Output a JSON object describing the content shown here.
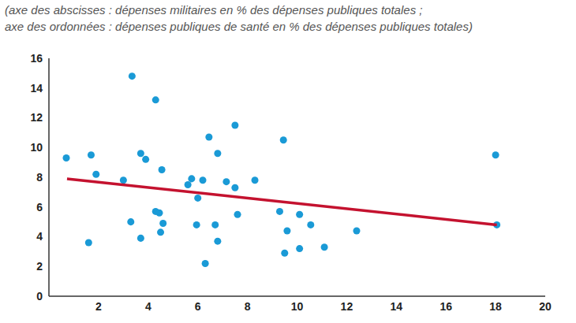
{
  "chart_data": {
    "type": "scatter",
    "subtitle": [
      "(axe des abscisses : dépenses militaires en % des dépenses publiques totales ;",
      "axe des ordonnées : dépenses publiques de santé en % des dépenses publiques totales)"
    ],
    "xlim": [
      0,
      20
    ],
    "xticks": [
      2,
      4,
      6,
      8,
      10,
      12,
      14,
      16,
      18,
      20
    ],
    "ylim": [
      0,
      16
    ],
    "yticks": [
      0,
      2,
      4,
      6,
      8,
      10,
      12,
      14,
      16
    ],
    "grid": false,
    "series": [
      {
        "type": "scatter",
        "color": "#1a9ad6",
        "marker": "circle",
        "x": [
          0.7,
          1.7,
          1.9,
          1.6,
          3.0,
          3.3,
          3.35,
          3.7,
          3.9,
          3.7,
          4.3,
          4.3,
          4.45,
          4.5,
          4.6,
          4.55,
          5.6,
          5.75,
          6.0,
          5.95,
          6.2,
          6.3,
          6.45,
          6.8,
          6.7,
          6.8,
          7.15,
          7.5,
          7.5,
          7.6,
          8.3,
          9.3,
          9.45,
          9.5,
          9.6,
          10.1,
          10.1,
          10.55,
          11.1,
          12.4,
          18.0,
          18.05
        ],
        "values": [
          9.3,
          9.5,
          8.2,
          3.6,
          7.8,
          5.0,
          14.8,
          9.6,
          9.2,
          3.9,
          13.2,
          5.7,
          5.6,
          4.3,
          4.9,
          8.5,
          7.5,
          7.9,
          6.6,
          4.8,
          7.8,
          2.2,
          10.7,
          9.6,
          4.8,
          3.7,
          7.7,
          11.5,
          7.3,
          5.5,
          7.8,
          5.7,
          10.5,
          2.9,
          4.4,
          5.5,
          3.2,
          4.8,
          3.3,
          4.4,
          9.5,
          4.8
        ]
      },
      {
        "type": "line",
        "color": "#c4122f",
        "line_style": "solid",
        "x": [
          0.73,
          18.05
        ],
        "values": [
          7.9,
          4.8
        ]
      }
    ]
  }
}
